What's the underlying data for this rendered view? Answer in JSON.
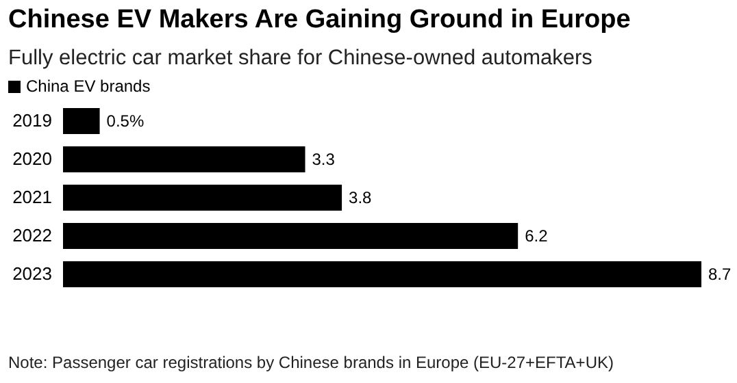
{
  "chart_data": {
    "type": "bar",
    "orientation": "horizontal",
    "title": "Chinese EV Makers Are Gaining Ground in Europe",
    "subtitle": "Fully electric car market share for Chinese-owned automakers",
    "categories": [
      "2019",
      "2020",
      "2021",
      "2022",
      "2023"
    ],
    "series": [
      {
        "name": "China EV brands",
        "color": "#000000",
        "values": [
          0.5,
          3.3,
          3.8,
          6.2,
          8.7
        ],
        "value_labels": [
          "0.5%",
          "3.3",
          "3.8",
          "6.2",
          "8.7"
        ]
      }
    ],
    "legend": "top left",
    "grid": false,
    "annotations": [
      "Note: Passenger car registrations by Chinese brands in Europe (EU-27+EFTA+UK)"
    ]
  }
}
